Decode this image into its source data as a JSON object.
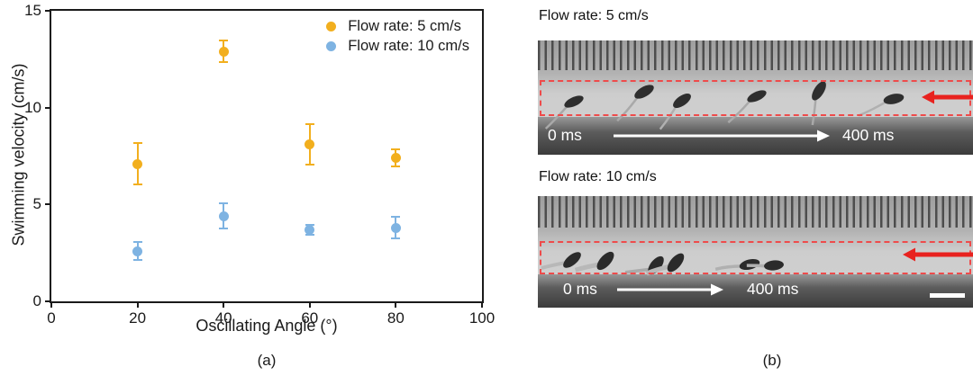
{
  "figure": {
    "panel_a_caption": "(a)",
    "panel_b_caption": "(b)"
  },
  "chart_data": {
    "type": "scatter",
    "title": "",
    "xlabel": "Oscillating Angle (°)",
    "ylabel": "Swimming velocity (cm/s)",
    "xlim": [
      0,
      100
    ],
    "ylim": [
      0,
      15
    ],
    "x_ticks": [
      0,
      20,
      40,
      60,
      80,
      100
    ],
    "y_ticks": [
      0,
      5,
      10,
      15
    ],
    "grid": false,
    "legend_position": "top-right-inside",
    "x": [
      20,
      40,
      60,
      80
    ],
    "series": [
      {
        "name": "Flow rate: 5 cm/s",
        "color": "#F2AF1E",
        "values": [
          7.1,
          12.9,
          8.1,
          7.4
        ],
        "errors": [
          1.1,
          0.6,
          1.1,
          0.5
        ]
      },
      {
        "name": "Flow rate: 10 cm/s",
        "color": "#7EB3E2",
        "values": [
          2.6,
          4.4,
          3.7,
          3.8
        ],
        "errors": [
          0.5,
          0.7,
          0.3,
          0.6
        ]
      }
    ]
  },
  "panel_b": {
    "frames": [
      {
        "label": "Flow rate: 5 cm/s",
        "time_start": "0 ms",
        "time_end": "400 ms"
      },
      {
        "label": "Flow rate: 10 cm/s",
        "time_start": "0 ms",
        "time_end": "400 ms"
      }
    ],
    "annotation_colors": {
      "flow_arrow_red": "#E8221F",
      "tracking_box_red": "#EE4B4B"
    },
    "icons": {
      "flow_arrow": "left-arrow",
      "time_arrow": "right-arrow"
    }
  }
}
